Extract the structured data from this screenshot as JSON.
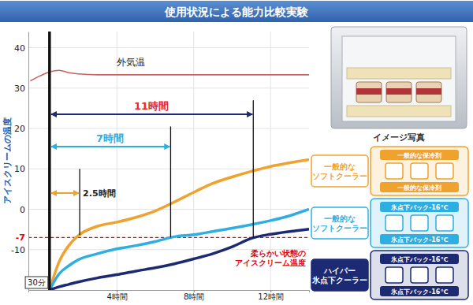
{
  "chart_data": {
    "type": "line",
    "title": "使用状況による能力比較実験",
    "y_label": "アイスクリームの温度",
    "x": [
      -0.5,
      0,
      0.5,
      1,
      1.5,
      2,
      3,
      4,
      5,
      6,
      7,
      8,
      9,
      10,
      11,
      12,
      13,
      14
    ],
    "xlim": [
      -0.6,
      14
    ],
    "xticks": [
      {
        "value": 4,
        "label": "4時間"
      },
      {
        "value": 8,
        "label": "8時間"
      },
      {
        "value": 12,
        "label": "12時間"
      }
    ],
    "ylim": [
      -20,
      44
    ],
    "yticks": [
      40,
      30,
      20,
      10,
      0,
      -7,
      -10
    ],
    "grid": true,
    "series": [
      {
        "name": "外気温",
        "color": "#c8615f",
        "values": [
          31.8,
          33,
          34,
          34.4,
          33.8,
          33.5,
          33.3,
          33.3,
          33.3,
          33.3,
          33.3,
          33.3,
          33.3,
          33.3,
          33.3,
          33.3,
          33.3,
          33.3
        ]
      },
      {
        "name": "一般的な\nソフトクーラー",
        "pack_label": "一般的な保冷剤",
        "color": "#f0a22e",
        "values": [
          null,
          null,
          -20,
          -13,
          -9,
          -6.5,
          -4.2,
          -3.2,
          -2,
          -0.4,
          1.8,
          4.2,
          6.4,
          8,
          9.4,
          10.6,
          11.5,
          12.3
        ]
      },
      {
        "name": "一般的な\nソフトクーラー",
        "pack_label": "氷点下パック-16℃",
        "color": "#2eaee3",
        "values": [
          null,
          null,
          -20,
          -16,
          -14,
          -12.5,
          -11,
          -9.8,
          -9,
          -8,
          -6.8,
          -6.3,
          -5.5,
          -4.7,
          -3.8,
          -2.8,
          -1.6,
          0
        ]
      },
      {
        "name": "ハイパー\n氷点下クーラー",
        "pack_label": "氷点下パック-16℃",
        "color": "#1b2a72",
        "values": [
          null,
          null,
          -20,
          -19.2,
          -18.6,
          -18,
          -17,
          -16.2,
          -15.3,
          -14.5,
          -13.5,
          -12.3,
          -11,
          -9.3,
          -7.2,
          -6.2,
          -5.5,
          -4.9
        ]
      }
    ],
    "reference_lines": [
      {
        "y": -7,
        "label": [
          "柔らかい状態の",
          "アイスクリーム温度"
        ],
        "color": "#e60012",
        "line_style": "dashed"
      }
    ],
    "start_marker": {
      "x": 0.5,
      "label": "30分"
    },
    "annotations": [
      {
        "text": "11時間",
        "color": "#e8242b",
        "series": 3,
        "x0": 0.5,
        "x1": 11.1,
        "y": 23.5,
        "y_top": 27,
        "y_bottom": -7
      },
      {
        "text": "7時間",
        "color": "#2eaee3",
        "series": 2,
        "x0": 0.5,
        "x1": 6.8,
        "y": 15.5,
        "y_top": 20.5,
        "y_bottom": -7
      },
      {
        "text": "2.5時間",
        "color": "#222222",
        "series": 1,
        "x0": 0.5,
        "x1": 2.07,
        "y": 4,
        "y_top": 10,
        "y_bottom": -6.4
      }
    ],
    "image_caption": "イメージ写真"
  }
}
